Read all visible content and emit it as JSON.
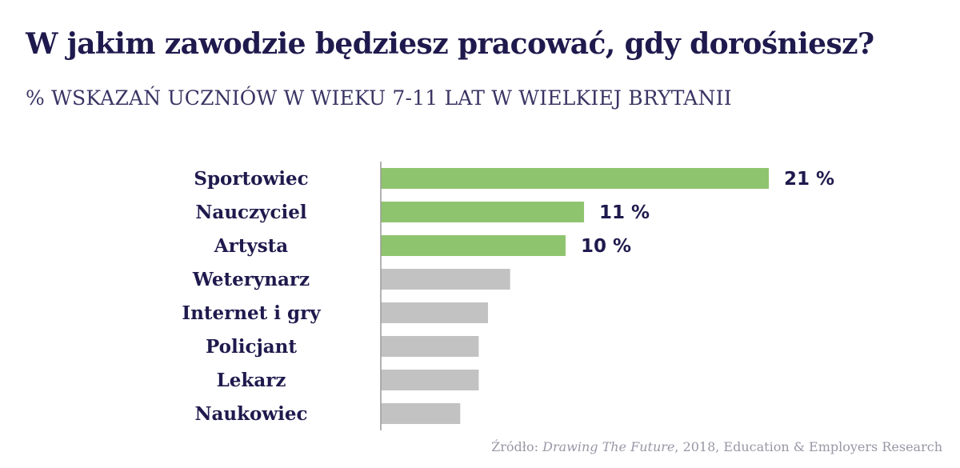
{
  "colors": {
    "highlight": "#8fc46f",
    "muted": "#c2c2c2",
    "axis": "#9a9a9a",
    "text": "#1f1a4d"
  },
  "source": {
    "prefix": "Źródło:",
    "title": "Drawing The Future",
    "suffix": ", 2018, Education & Employers Research"
  },
  "chart_data": {
    "type": "bar",
    "orientation": "horizontal",
    "title": "W jakim zawodzie będziesz pracować, gdy dorośniesz?",
    "subtitle": "% WSKAZAŃ UCZNIÓW W WIEKU 7-11 LAT W WIELKIEJ BRYTANII",
    "xlabel": "",
    "ylabel": "",
    "xlim": [
      0,
      21
    ],
    "grid": false,
    "categories": [
      "Sportowiec",
      "Nauczyciel",
      "Artysta",
      "Weterynarz",
      "Internet i gry",
      "Policjant",
      "Lekarz",
      "Naukowiec"
    ],
    "values": [
      21,
      11,
      10,
      7,
      5.8,
      5.3,
      5.3,
      4.3
    ],
    "highlighted": [
      true,
      true,
      true,
      false,
      false,
      false,
      false,
      false
    ],
    "data_labels": [
      "21 %",
      "11 %",
      "10 %",
      "",
      "",
      "",
      "",
      ""
    ]
  }
}
